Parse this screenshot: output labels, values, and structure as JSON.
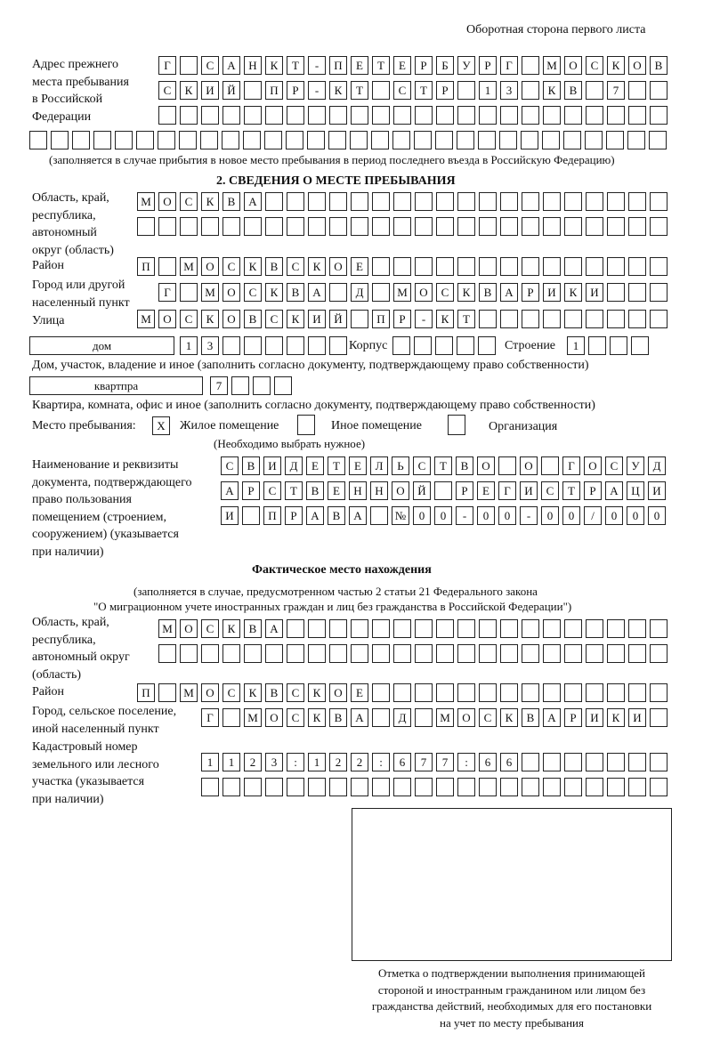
{
  "header": "Оборотная сторона первого листа",
  "prev_address": {
    "label": "Адрес прежнего\nместа пребывания\nв Российской\nФедерации",
    "rows": [
      "Г САНКТ-ПЕТЕРБУРГ МОСКОВ",
      "СКИЙ ПР-КТ СТР 13 КВ 7",
      "",
      ""
    ],
    "note": "(заполняется в случае прибытия в новое место пребывания в период последнего въезда в Российскую Федерацию)"
  },
  "section2": {
    "title": "2. СВЕДЕНИЯ О МЕСТЕ ПРЕБЫВАНИЯ",
    "region_label": "Область, край,\nреспублика,\nавтономный\nокруг (область)",
    "region_rows": [
      "МОСКВА",
      ""
    ],
    "district_label": "Район",
    "district": "П МОСКВСКОЕ",
    "city_label": "Город или другой\nнаселенный пункт",
    "city": "Г МОСКВА Д МОСКВАРИКИ",
    "street_label": "Улица",
    "street": "МОСКОВСКИЙ ПР-КТ",
    "house_type": "дом",
    "house": "13",
    "korpus_label": "Корпус",
    "korpus": "",
    "building_label": "Строение",
    "building": "1",
    "house_note": "Дом, участок, владение и иное (заполнить согласно документу, подтверждающему право собственности)",
    "flat_type": "квартпра",
    "flat": "7",
    "flat_note": "Квартира, комната, офис и иное (заполнить согласно документу, подтверждающему право собственности)",
    "place_label": "Место пребывания:",
    "opt_living": {
      "label": "Жилое помещение",
      "checked": "X"
    },
    "opt_other": {
      "label": "Иное помещение",
      "checked": ""
    },
    "opt_org": {
      "label": "Организация",
      "checked": ""
    },
    "place_note": "(Необходимо выбрать нужное)",
    "doc_label": "Наименование и реквизиты\nдокумента, подтверждающего\nправо пользования\nпомещением (строением,\nсооружением) (указывается\nпри наличии)",
    "doc_rows": [
      "СВИДЕТЕЛЬСТВО О ГОСУД",
      "АРСТВЕННОЙ РЕГИСТРАЦИ",
      "И ПРАВА №00-00-00/000"
    ]
  },
  "actual": {
    "title": "Фактическое место нахождения",
    "note1": "(заполняется в случае, предусмотренном частью 2 статьи 21 Федерального закона",
    "note2": "\"О миграционном учете иностранных граждан и лиц без гражданства в Российской Федерации\")",
    "region_label": "Область, край,\nреспублика,\nавтономный округ\n(область)",
    "region_rows": [
      "МОСКВА",
      ""
    ],
    "district_label": "Район",
    "district": "П МОСКВСКОЕ",
    "city_label": "Город, сельское поселение,\nиной населенный пункт",
    "city": "Г МОСКВА Д МОСКВАРИКИ",
    "cadastral_label": "Кадастровый номер\nземельного или лесного\nучастка (указывается\nпри наличии)",
    "cadastral_rows": [
      "1123:122:677:66",
      ""
    ]
  },
  "stamp_caption": "Отметка о подтверждении выполнения принимающей\nстороной и иностранным гражданином или лицом без\nгражданства действий, необходимых для его постановки\nна учет по месту пребывания"
}
